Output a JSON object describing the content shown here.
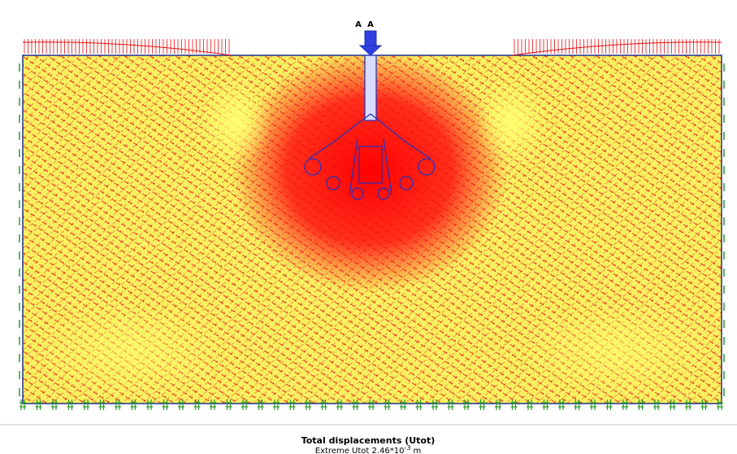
{
  "markers": {
    "left": "A",
    "right": "A"
  },
  "caption": {
    "title": "Total displacements (Utot)",
    "extreme_label": "Extreme Utot 2.46*10",
    "exponent": "-3",
    "unit": "m"
  }
}
